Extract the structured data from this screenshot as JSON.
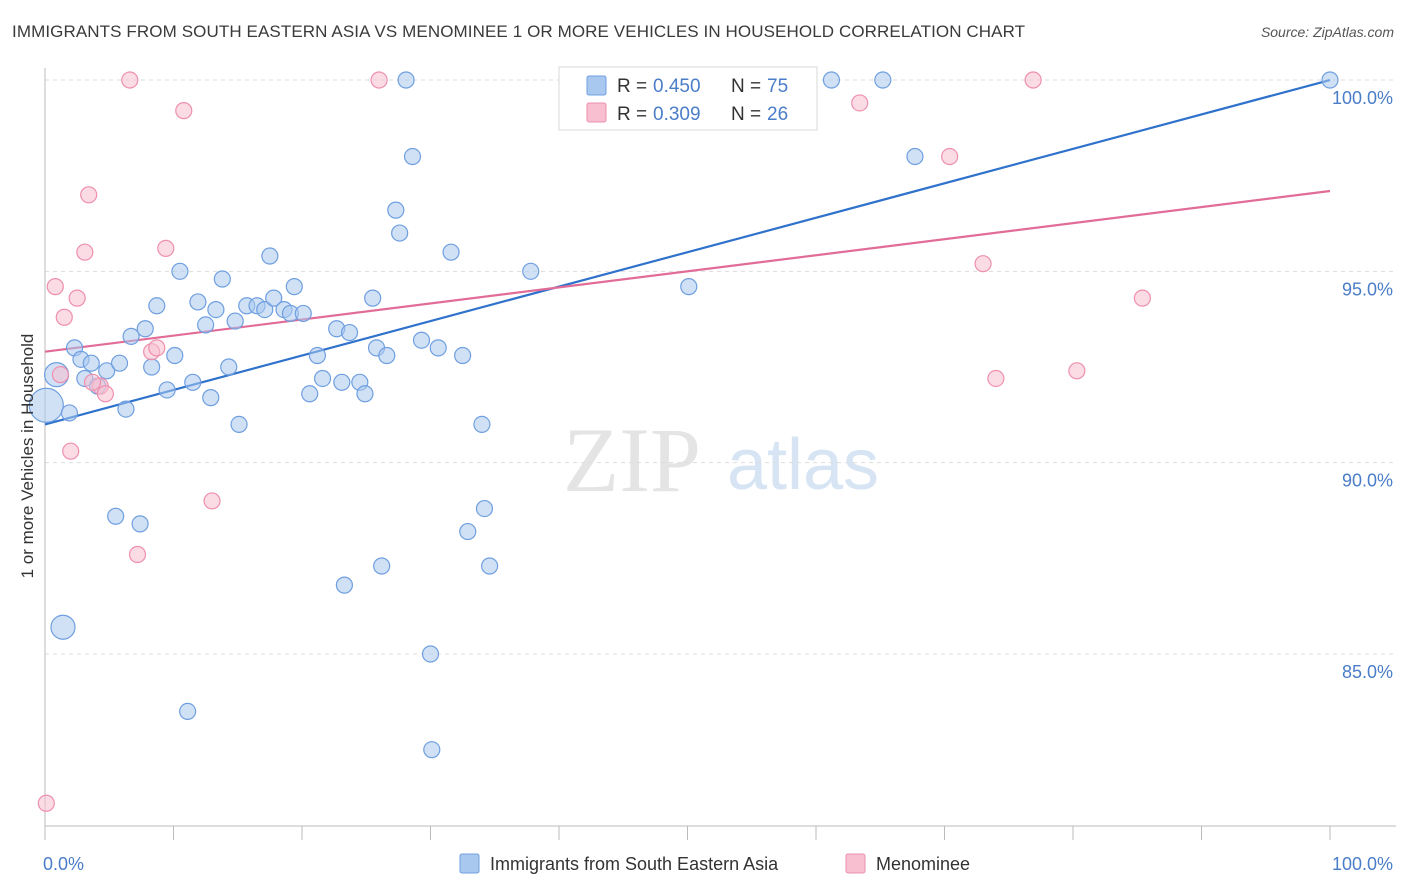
{
  "title": "IMMIGRANTS FROM SOUTH EASTERN ASIA VS MENOMINEE 1 OR MORE VEHICLES IN HOUSEHOLD CORRELATION CHART",
  "source": "Source: ZipAtlas.com",
  "watermark": {
    "zip": "ZIP",
    "atlas": "atlas"
  },
  "colors": {
    "blue_fill": "#a9c8ef",
    "blue_stroke": "#6f9fe0",
    "blue_line": "#2f72cc",
    "pink_fill": "#f7bfd0",
    "pink_stroke": "#ee8fae",
    "pink_line": "#e06c97",
    "tick_text": "#4a7dc8",
    "grid": "#dddddd"
  },
  "legend": {
    "rows": [
      {
        "r_label": "R = ",
        "r_value": "0.450",
        "n_label": "N = ",
        "n_value": "75"
      },
      {
        "r_label": "R = ",
        "r_value": "0.309",
        "n_label": "N = ",
        "n_value": "26"
      }
    ]
  },
  "bottom_legend": [
    "Immigrants from South Eastern Asia",
    "Menominee"
  ],
  "chart_data": {
    "type": "scatter",
    "xlabel": "",
    "ylabel": "1 or more Vehicles in Household",
    "xlim": [
      0,
      100
    ],
    "ylim": [
      80.8,
      100.6
    ],
    "x_tick_labels": [
      "0.0%",
      "100.0%"
    ],
    "y_ticks": [
      {
        "value": 85,
        "label": "85.0%"
      },
      {
        "value": 90,
        "label": "90.0%"
      },
      {
        "value": 95,
        "label": "95.0%"
      },
      {
        "value": 100,
        "label": "100.0%"
      }
    ],
    "grid": true,
    "series": [
      {
        "name": "Immigrants from South Eastern Asia",
        "color": "blue",
        "r": 0.45,
        "n": 75,
        "trend": {
          "x": [
            0,
            100
          ],
          "y": [
            91.0,
            100.0
          ]
        },
        "points": [
          [
            0.9,
            92.3,
            "l"
          ],
          [
            0.1,
            91.5,
            "xl"
          ],
          [
            1.4,
            85.7,
            "l"
          ],
          [
            1.9,
            91.3,
            "m"
          ],
          [
            2.3,
            93.0,
            "m"
          ],
          [
            2.8,
            92.7,
            "m"
          ],
          [
            3.1,
            92.2,
            "m"
          ],
          [
            3.6,
            92.6,
            "m"
          ],
          [
            4.1,
            92.0,
            "m"
          ],
          [
            4.8,
            92.4,
            "m"
          ],
          [
            5.5,
            88.6,
            "m"
          ],
          [
            5.8,
            92.6,
            "m"
          ],
          [
            6.3,
            91.4,
            "m"
          ],
          [
            6.7,
            93.3,
            "m"
          ],
          [
            7.4,
            88.4,
            "m"
          ],
          [
            7.8,
            93.5,
            "m"
          ],
          [
            8.3,
            92.5,
            "m"
          ],
          [
            8.7,
            94.1,
            "m"
          ],
          [
            9.5,
            91.9,
            "m"
          ],
          [
            10.1,
            92.8,
            "m"
          ],
          [
            10.5,
            95.0,
            "m"
          ],
          [
            11.1,
            83.5,
            "m"
          ],
          [
            11.5,
            92.1,
            "m"
          ],
          [
            11.9,
            94.2,
            "m"
          ],
          [
            12.5,
            93.6,
            "m"
          ],
          [
            12.9,
            91.7,
            "m"
          ],
          [
            13.3,
            94.0,
            "m"
          ],
          [
            13.8,
            94.8,
            "m"
          ],
          [
            14.3,
            92.5,
            "m"
          ],
          [
            14.8,
            93.7,
            "m"
          ],
          [
            15.1,
            91.0,
            "m"
          ],
          [
            15.7,
            94.1,
            "m"
          ],
          [
            16.5,
            94.1,
            "m"
          ],
          [
            17.1,
            94.0,
            "m"
          ],
          [
            17.5,
            95.4,
            "m"
          ],
          [
            17.8,
            94.3,
            "m"
          ],
          [
            18.6,
            94.0,
            "m"
          ],
          [
            19.1,
            93.9,
            "m"
          ],
          [
            19.4,
            94.6,
            "m"
          ],
          [
            20.1,
            93.9,
            "m"
          ],
          [
            20.6,
            91.8,
            "m"
          ],
          [
            21.2,
            92.8,
            "m"
          ],
          [
            21.6,
            92.2,
            "m"
          ],
          [
            22.7,
            93.5,
            "m"
          ],
          [
            23.1,
            92.1,
            "m"
          ],
          [
            23.3,
            86.8,
            "m"
          ],
          [
            23.7,
            93.4,
            "m"
          ],
          [
            24.5,
            92.1,
            "m"
          ],
          [
            24.9,
            91.8,
            "m"
          ],
          [
            25.5,
            94.3,
            "m"
          ],
          [
            25.8,
            93.0,
            "m"
          ],
          [
            26.2,
            87.3,
            "m"
          ],
          [
            26.6,
            92.8,
            "m"
          ],
          [
            27.3,
            96.6,
            "m"
          ],
          [
            27.6,
            96.0,
            "m"
          ],
          [
            28.1,
            100.0,
            "m"
          ],
          [
            28.6,
            98.0,
            "m"
          ],
          [
            29.3,
            93.2,
            "m"
          ],
          [
            30.0,
            85.0,
            "m"
          ],
          [
            30.1,
            82.5,
            "m"
          ],
          [
            30.6,
            93.0,
            "m"
          ],
          [
            31.6,
            95.5,
            "m"
          ],
          [
            32.5,
            92.8,
            "m"
          ],
          [
            32.9,
            88.2,
            "m"
          ],
          [
            34.2,
            88.8,
            "m"
          ],
          [
            34.6,
            87.3,
            "m"
          ],
          [
            34.0,
            91.0,
            "m"
          ],
          [
            37.8,
            95.0,
            "m"
          ],
          [
            43.2,
            100.0,
            "m"
          ],
          [
            50.1,
            94.6,
            "m"
          ],
          [
            59.4,
            100.0,
            "m"
          ],
          [
            61.2,
            100.0,
            "m"
          ],
          [
            65.2,
            100.0,
            "m"
          ],
          [
            67.7,
            98.0,
            "m"
          ],
          [
            100.0,
            100.0,
            "m"
          ]
        ]
      },
      {
        "name": "Menominee",
        "color": "pink",
        "r": 0.309,
        "n": 26,
        "trend": {
          "x": [
            0,
            100
          ],
          "y": [
            92.9,
            97.1
          ]
        },
        "points": [
          [
            0.1,
            81.1,
            "m"
          ],
          [
            0.8,
            94.6,
            "m"
          ],
          [
            1.5,
            93.8,
            "m"
          ],
          [
            2.0,
            90.3,
            "m"
          ],
          [
            2.5,
            94.3,
            "m"
          ],
          [
            3.1,
            95.5,
            "m"
          ],
          [
            3.4,
            97.0,
            "m"
          ],
          [
            4.3,
            92.0,
            "m"
          ],
          [
            4.7,
            91.8,
            "m"
          ],
          [
            6.6,
            100.0,
            "m"
          ],
          [
            7.2,
            87.6,
            "m"
          ],
          [
            8.3,
            92.9,
            "m"
          ],
          [
            8.7,
            93.0,
            "m"
          ],
          [
            9.4,
            95.6,
            "m"
          ],
          [
            10.8,
            99.2,
            "m"
          ],
          [
            13.0,
            89.0,
            "m"
          ],
          [
            26.0,
            100.0,
            "m"
          ],
          [
            63.4,
            99.4,
            "m"
          ],
          [
            70.4,
            98.0,
            "m"
          ],
          [
            74.0,
            92.2,
            "m"
          ],
          [
            73.0,
            95.2,
            "m"
          ],
          [
            76.9,
            100.0,
            "m"
          ],
          [
            80.3,
            92.4,
            "m"
          ],
          [
            85.4,
            94.3,
            "m"
          ],
          [
            3.7,
            92.1,
            "m"
          ],
          [
            1.2,
            92.3,
            "m"
          ]
        ]
      }
    ]
  }
}
